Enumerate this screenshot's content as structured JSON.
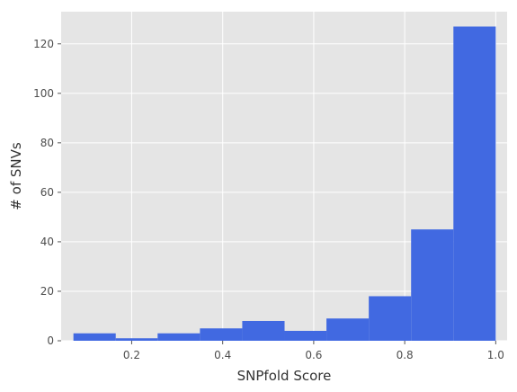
{
  "chart_data": {
    "type": "histogram",
    "title": "",
    "xlabel": "SNPfold Score",
    "ylabel": "# of SNVs",
    "xlim": [
      0.045,
      1.025
    ],
    "ylim": [
      0,
      133
    ],
    "bin_edges": [
      0.072,
      0.165,
      0.257,
      0.35,
      0.443,
      0.536,
      0.628,
      0.721,
      0.814,
      0.907,
      1.0
    ],
    "counts": [
      3,
      1,
      3,
      5,
      8,
      4,
      9,
      18,
      45,
      127
    ],
    "x_ticks": [
      0.2,
      0.4,
      0.6,
      0.8,
      1.0
    ],
    "x_tick_labels": [
      "0.2",
      "0.4",
      "0.6",
      "0.8",
      "1.0"
    ],
    "y_ticks": [
      0,
      20,
      40,
      60,
      80,
      100,
      120
    ],
    "y_tick_labels": [
      "0",
      "20",
      "40",
      "60",
      "80",
      "100",
      "120"
    ],
    "grid": true,
    "style": "ggplot",
    "colors": {
      "bar": "#4169E1",
      "panel": "#E5E5E5",
      "grid": "#FFFFFF"
    }
  }
}
